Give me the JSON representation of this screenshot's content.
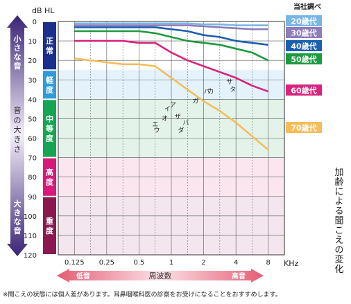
{
  "chart_data": {
    "type": "line",
    "ylabel": "dB HL",
    "xlabel": "KHz",
    "source_note": "当社調べ",
    "side_title": "加齢による聞こえの変化",
    "footnote": "※聞こえの状態には個人差があります。耳鼻咽喉科医の診察をお受けになることをおすすめします。",
    "x_ticks": [
      "0.125",
      "0.25",
      "0.5",
      "1",
      "2",
      "4",
      "8"
    ],
    "y_ticks": [
      "0",
      "10",
      "20",
      "30",
      "40",
      "50",
      "60",
      "70",
      "80",
      "90",
      "100",
      "110",
      "120"
    ],
    "ylim": [
      0,
      120
    ],
    "y_inverted": true,
    "x_arrow": {
      "low": "低音",
      "middle": "周波数",
      "high": "高音"
    },
    "y_arrow": {
      "top": "小さな音",
      "middle": "音の大きさ",
      "bottom": "大きな音"
    },
    "bands": [
      {
        "label": "正常",
        "range": [
          0,
          25
        ],
        "color": "#1c2f8c",
        "fill": "#ffffff"
      },
      {
        "label": "軽度",
        "range": [
          25,
          40
        ],
        "color": "#2e9bd8",
        "fill": "#e3f2fb"
      },
      {
        "label": "中等度",
        "range": [
          40,
          70
        ],
        "color": "#15a553",
        "fill": "#e4f3ea"
      },
      {
        "label": "高度",
        "range": [
          70,
          90
        ],
        "color": "#d7197b",
        "fill": "#fbe6f0"
      },
      {
        "label": "重度",
        "range": [
          90,
          120
        ],
        "color": "#8a1950",
        "fill": "#f4e6ee"
      }
    ],
    "series": [
      {
        "name": "20歳代",
        "color": "#7ab6e4",
        "x": [
          0,
          0.5,
          1,
          1.5,
          2,
          2.5,
          3,
          3.5,
          4,
          4.5,
          5,
          5.5,
          6
        ],
        "values": [
          1,
          1,
          1,
          1,
          1,
          1,
          1,
          1,
          1.5,
          1.5,
          2,
          2,
          2
        ]
      },
      {
        "name": "30歳代",
        "color": "#8e7cbc",
        "x": [
          0,
          0.5,
          1,
          1.5,
          2,
          2.5,
          3,
          3.5,
          4,
          4.5,
          5,
          5.5,
          6
        ],
        "values": [
          2,
          2,
          2,
          2,
          2,
          2,
          2,
          2,
          2.5,
          3,
          3.5,
          4,
          4
        ]
      },
      {
        "name": "40歳代",
        "color": "#1a5fb0",
        "x": [
          0,
          0.5,
          1,
          1.5,
          2,
          2.5,
          3,
          3.5,
          4,
          4.5,
          5,
          5.5,
          6
        ],
        "values": [
          3,
          3,
          3,
          3,
          3,
          3,
          4,
          5,
          7,
          8,
          10,
          11,
          12
        ]
      },
      {
        "name": "50歳代",
        "color": "#1c9a3f",
        "x": [
          0,
          0.5,
          1,
          1.5,
          2,
          2.5,
          3,
          3.5,
          4,
          4.5,
          5,
          5.5,
          6
        ],
        "values": [
          5,
          5,
          5,
          5,
          5,
          6,
          8,
          10,
          11,
          12,
          14,
          16,
          20
        ]
      },
      {
        "name": "60歳代",
        "color": "#d9247d",
        "x": [
          0,
          0.5,
          1,
          1.5,
          2,
          2.5,
          3,
          3.5,
          4,
          4.5,
          5,
          5.5,
          6
        ],
        "values": [
          10,
          10,
          10,
          10,
          11,
          11,
          16,
          20,
          23,
          26,
          29,
          33,
          36
        ]
      },
      {
        "name": "70歳代",
        "color": "#f4bd5a",
        "x": [
          0,
          0.5,
          1,
          1.5,
          2,
          2.5,
          3,
          3.5,
          4,
          4.5,
          5,
          5.5,
          6
        ],
        "values": [
          19,
          20,
          21,
          22,
          22,
          23,
          29,
          35,
          41,
          46,
          52,
          59,
          66
        ]
      }
    ],
    "phonemes": [
      {
        "text": "エ",
        "x": 2.5,
        "y": 54
      },
      {
        "text": "ウ",
        "x": 2.55,
        "y": 57
      },
      {
        "text": "オ",
        "x": 2.8,
        "y": 51
      },
      {
        "text": "イ",
        "x": 2.88,
        "y": 46
      },
      {
        "text": "ア",
        "x": 3.05,
        "y": 44
      },
      {
        "text": "ザ",
        "x": 3.2,
        "y": 50
      },
      {
        "text": "ダ",
        "x": 3.3,
        "y": 57
      },
      {
        "text": "バ",
        "x": 3.45,
        "y": 53
      },
      {
        "text": "ガ",
        "x": 3.75,
        "y": 42
      },
      {
        "text": "バ",
        "x": 4.1,
        "y": 37
      },
      {
        "text": "カ",
        "x": 4.22,
        "y": 37
      },
      {
        "text": "サ",
        "x": 4.8,
        "y": 32
      },
      {
        "text": "タ",
        "x": 4.9,
        "y": 36
      }
    ]
  }
}
